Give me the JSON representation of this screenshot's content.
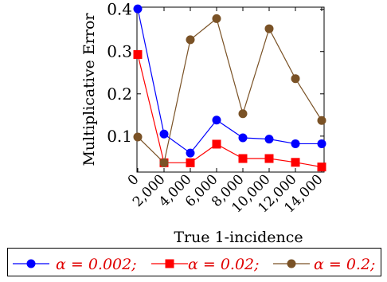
{
  "chart_data": {
    "type": "line",
    "title": "",
    "xlabel": "True 1-incidence",
    "ylabel": "Multiplicative Error",
    "x": [
      0,
      2000,
      4000,
      6000,
      8000,
      10000,
      12000,
      14000
    ],
    "x_tick_labels": [
      "0",
      "2,000",
      "4,000",
      "6,000",
      "8,000",
      "10,000",
      "12,000",
      "14,000"
    ],
    "xlim": [
      0,
      14000
    ],
    "ylim": [
      0.015,
      0.405
    ],
    "y_ticks": [
      0.1,
      0.2,
      0.3,
      0.4
    ],
    "y_tick_labels": [
      "0.1",
      "0.2",
      "0.3",
      "0.4"
    ],
    "grid": false,
    "legend_position": "bottom",
    "series": [
      {
        "name": "α = 0.002;",
        "color": "#0000ff",
        "marker": "circle",
        "values": [
          0.401,
          0.105,
          0.06,
          0.138,
          0.096,
          0.093,
          0.082,
          0.082
        ]
      },
      {
        "name": "α = 0.02;",
        "color": "#ff0000",
        "marker": "square",
        "values": [
          0.293,
          0.037,
          0.037,
          0.081,
          0.047,
          0.047,
          0.038,
          0.027
        ]
      },
      {
        "name": "α = 0.2;",
        "color": "#7a5226",
        "marker": "circle",
        "values": [
          0.098,
          0.037,
          0.328,
          0.378,
          0.153,
          0.354,
          0.236,
          0.137
        ]
      }
    ]
  }
}
